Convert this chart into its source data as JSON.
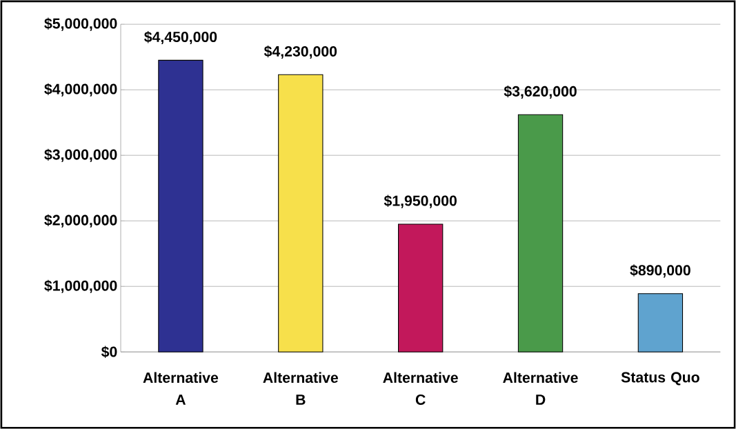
{
  "chart_data": {
    "type": "bar",
    "categories": [
      "Alternative A",
      "Alternative B",
      "Alternative C",
      "Alternative D",
      "Status Quo"
    ],
    "values": [
      4450000,
      4230000,
      1950000,
      3620000,
      890000
    ],
    "colors": [
      "#2e3192",
      "#f7e04b",
      "#c2185b",
      "#4a9a4a",
      "#5fa3cf"
    ],
    "value_labels": [
      "$4,450,000",
      "$4,230,000",
      "$1,950,000",
      "$3,620,000",
      "$890,000"
    ],
    "ylim": [
      0,
      5000000
    ],
    "yticks": [
      {
        "value": 0,
        "label": "$0"
      },
      {
        "value": 1000000,
        "label": "$1,000,000"
      },
      {
        "value": 2000000,
        "label": "$2,000,000"
      },
      {
        "value": 3000000,
        "label": "$3,000,000"
      },
      {
        "value": 4000000,
        "label": "$4,000,000"
      },
      {
        "value": 5000000,
        "label": "$5,000,000"
      }
    ],
    "grid": "y"
  }
}
